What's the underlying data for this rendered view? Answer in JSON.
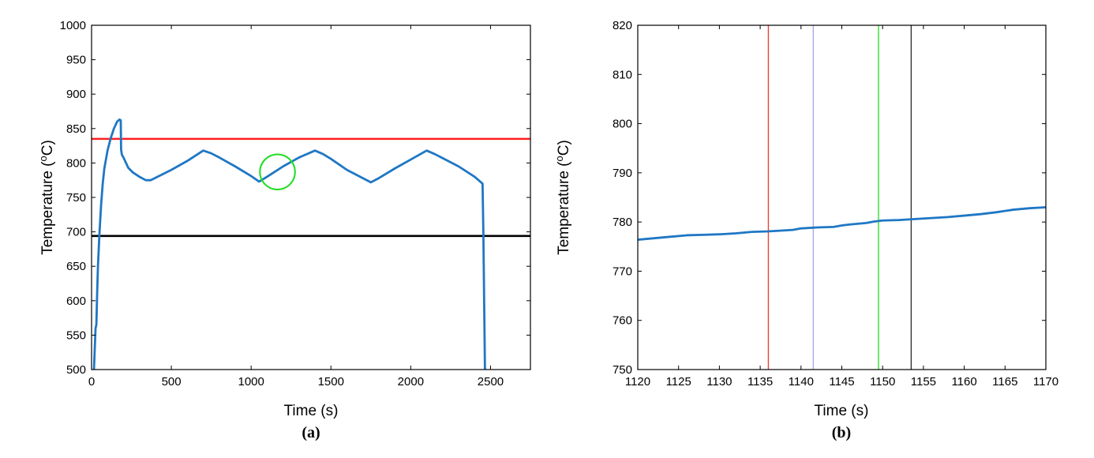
{
  "chart_data": [
    {
      "type": "line",
      "panel_label": "(a)",
      "xlabel": "Time (s)",
      "ylabel_main": "Temperature (",
      "ylabel_sup": "o",
      "ylabel_unit": "C)",
      "xlim": [
        0,
        2750
      ],
      "ylim": [
        500,
        1000
      ],
      "xticks": [
        0,
        500,
        1000,
        1500,
        2000,
        2500
      ],
      "yticks": [
        500,
        550,
        600,
        650,
        700,
        750,
        800,
        850,
        900,
        950,
        1000
      ],
      "series": [
        {
          "color": "#1f77c4",
          "x": [
            15,
            25,
            30,
            35,
            40,
            50,
            60,
            70,
            80,
            100,
            120,
            140,
            160,
            175,
            183,
            185,
            190,
            200,
            230,
            260,
            300,
            340,
            370,
            500,
            600,
            700,
            750,
            800,
            900,
            1000,
            1050,
            1100,
            1200,
            1300,
            1400,
            1450,
            1500,
            1600,
            1700,
            1750,
            1800,
            1900,
            2000,
            2100,
            2150,
            2200,
            2300,
            2400,
            2440,
            2450,
            2455,
            2460,
            2465
          ],
          "y": [
            500,
            560,
            565,
            610,
            650,
            700,
            740,
            770,
            792,
            818,
            836,
            850,
            860,
            863,
            862,
            820,
            812,
            808,
            793,
            786,
            780,
            775,
            775,
            790,
            803,
            818,
            814,
            808,
            795,
            781,
            773,
            780,
            795,
            808,
            818,
            813,
            806,
            790,
            778,
            772,
            778,
            792,
            805,
            818,
            813,
            807,
            795,
            780,
            772,
            770,
            700,
            600,
            500
          ]
        }
      ],
      "hlines": [
        {
          "y": 835,
          "color": "#ff2020"
        },
        {
          "y": 694,
          "color": "#000000"
        }
      ],
      "circle": {
        "cx": 1165,
        "cy": 787,
        "r_x": 110,
        "color": "#22dd22"
      }
    },
    {
      "type": "line",
      "panel_label": "(b)",
      "xlabel": "Time (s)",
      "ylabel_main": "Temperature (",
      "ylabel_sup": "o",
      "ylabel_unit": "C)",
      "xlim": [
        1120,
        1170
      ],
      "ylim": [
        750,
        820
      ],
      "xticks": [
        1120,
        1125,
        1130,
        1135,
        1140,
        1145,
        1150,
        1155,
        1160,
        1165,
        1170
      ],
      "yticks": [
        750,
        760,
        770,
        780,
        790,
        800,
        810,
        820
      ],
      "series": [
        {
          "color": "#1f77c4",
          "x": [
            1120,
            1122,
            1124,
            1126,
            1128,
            1130,
            1132,
            1134,
            1136,
            1137,
            1138,
            1139,
            1140,
            1142,
            1144,
            1145,
            1146,
            1148,
            1149,
            1150,
            1152,
            1154,
            1156,
            1158,
            1160,
            1162,
            1164,
            1166,
            1168,
            1170
          ],
          "y": [
            776.4,
            776.7,
            777.0,
            777.3,
            777.4,
            777.5,
            777.7,
            778.0,
            778.1,
            778.2,
            778.3,
            778.4,
            778.7,
            778.9,
            779.0,
            779.3,
            779.5,
            779.8,
            780.1,
            780.3,
            780.4,
            780.6,
            780.8,
            781.0,
            781.3,
            781.6,
            782.0,
            782.5,
            782.8,
            783.0
          ]
        }
      ],
      "vlines": [
        {
          "x": 1136,
          "color": "#e8413a"
        },
        {
          "x": 1141.5,
          "color": "#a9a9ee"
        },
        {
          "x": 1149.5,
          "color": "#33dd33"
        },
        {
          "x": 1153.5,
          "color": "#333333"
        }
      ]
    }
  ]
}
